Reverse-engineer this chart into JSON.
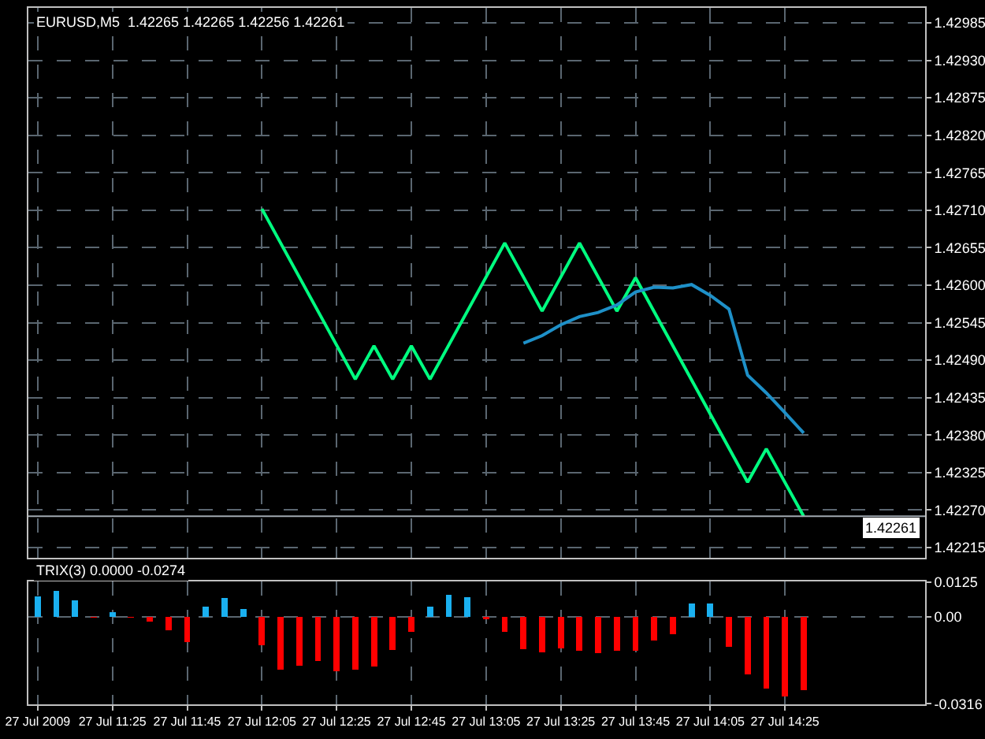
{
  "chart_data": [
    {
      "type": "line",
      "title": "EURUSD,M5  1.42265 1.42265 1.42256 1.42261",
      "categories": [
        null,
        null,
        null,
        null,
        null,
        null,
        null,
        null,
        null,
        null,
        null,
        null,
        null,
        null,
        null,
        null,
        null,
        null,
        null,
        null,
        null,
        null,
        null,
        null,
        null,
        null,
        null,
        null,
        null,
        null,
        null,
        null,
        null,
        null,
        null,
        null,
        null,
        null,
        null,
        null,
        null,
        null,
        null,
        null,
        null,
        null,
        null,
        null
      ],
      "ylim": [
        1.422,
        1.43007
      ],
      "yticks": [
        1.42985,
        {
          "value": 1.4293,
          "label": "1.42930"
        },
        1.42875,
        {
          "value": 1.4282,
          "label": "1.42820"
        },
        1.42765,
        {
          "value": 1.4271,
          "label": "1.42710"
        },
        1.42655,
        {
          "value": 1.426,
          "label": "1.42600"
        },
        1.42545,
        {
          "value": 1.4249,
          "label": "1.42490"
        },
        1.42435,
        {
          "value": 1.4238,
          "label": "1.42380"
        },
        1.42325,
        {
          "value": 1.4227,
          "label": "1.42270"
        },
        1.42215
      ],
      "grid": true,
      "tick_labels": "y",
      "series": [
        {
          "color": "#00ff80",
          "values": [
            null,
            null,
            null,
            null,
            null,
            null,
            null,
            null,
            null,
            null,
            null,
            null,
            1.42712,
            null,
            null,
            null,
            null,
            1.42462,
            1.42511,
            1.42462,
            1.42511,
            1.42462,
            null,
            null,
            null,
            1.42662,
            null,
            1.42562,
            null,
            1.42662,
            null,
            1.42562,
            1.42611,
            null,
            null,
            null,
            null,
            null,
            1.42311,
            1.4236,
            null,
            1.42261,
            null,
            null,
            null,
            null,
            null,
            null
          ]
        },
        {
          "color": "#1e90c8",
          "values": [
            null,
            null,
            null,
            null,
            null,
            null,
            null,
            null,
            null,
            null,
            null,
            null,
            null,
            null,
            null,
            null,
            null,
            null,
            null,
            null,
            null,
            null,
            null,
            null,
            null,
            null,
            1.42515,
            1.42526,
            1.42542,
            1.42554,
            1.4256,
            1.42571,
            1.4259,
            1.42597,
            1.42596,
            1.42601,
            1.42585,
            1.42565,
            1.42468,
            1.42442,
            1.42413,
            1.42383,
            null,
            null,
            null,
            null,
            null,
            null
          ]
        }
      ],
      "ref_lines": [
        {
          "axis": "y",
          "value": 1.42261,
          "label": "1.42261",
          "color": "#a0a8b0"
        }
      ]
    },
    {
      "type": "bar",
      "title": "TRIX(3) 0.0000 -0.0274",
      "categories": [
        "27 Jul 2009",
        null,
        null,
        null,
        "27 Jul 11:25",
        null,
        null,
        null,
        "27 Jul 11:45",
        null,
        null,
        null,
        "27 Jul 12:05",
        null,
        null,
        null,
        "27 Jul 12:25",
        null,
        null,
        null,
        "27 Jul 12:45",
        null,
        null,
        null,
        "27 Jul 13:05",
        null,
        null,
        null,
        "27 Jul 13:25",
        null,
        null,
        null,
        "27 Jul 13:45",
        null,
        null,
        null,
        "27 Jul 14:05",
        null,
        null,
        null,
        "27 Jul 14:25",
        null,
        null,
        null,
        null,
        null,
        null,
        null
      ],
      "ylim": [
        -0.0318,
        0.0127
      ],
      "yticks": [
        0.0125,
        {
          "value": 0,
          "label": "0.00"
        },
        -0.0316
      ],
      "grid": true,
      "values": [
        0.0074,
        0.0093,
        0.0058,
        -0.0005,
        0.0016,
        -0.0005,
        -0.0019,
        -0.0051,
        -0.0093,
        0.0035,
        0.0067,
        0.0028,
        -0.0104,
        -0.0193,
        -0.0179,
        -0.0162,
        -0.0197,
        -0.0193,
        -0.0181,
        -0.0121,
        -0.0056,
        0.0037,
        0.0079,
        0.007,
        -0.0009,
        -0.0056,
        -0.0118,
        -0.013,
        -0.0116,
        -0.0123,
        -0.0132,
        -0.0125,
        -0.0125,
        -0.0088,
        -0.0063,
        0.0046,
        0.0046,
        -0.0111,
        -0.0209,
        -0.026,
        -0.029,
        -0.0267,
        null,
        null,
        null,
        null,
        null,
        null
      ],
      "colors": [
        "#1ab0f0",
        "#1ab0f0",
        "#1ab0f0",
        "#ff0000",
        "#1ab0f0",
        "#ff0000",
        "#ff0000",
        "#ff0000",
        "#ff0000",
        "#1ab0f0",
        "#1ab0f0",
        "#1ab0f0",
        "#ff0000",
        "#ff0000",
        "#ff0000",
        "#ff0000",
        "#ff0000",
        "#ff0000",
        "#ff0000",
        "#ff0000",
        "#ff0000",
        "#1ab0f0",
        "#1ab0f0",
        "#1ab0f0",
        "#ff0000",
        "#ff0000",
        "#ff0000",
        "#ff0000",
        "#ff0000",
        "#ff0000",
        "#ff0000",
        "#ff0000",
        "#ff0000",
        "#ff0000",
        "#ff0000",
        "#1ab0f0",
        "#1ab0f0",
        "#ff0000",
        "#ff0000",
        "#ff0000",
        "#ff0000",
        "#ff0000",
        null,
        null,
        null,
        null,
        null,
        null
      ]
    }
  ]
}
